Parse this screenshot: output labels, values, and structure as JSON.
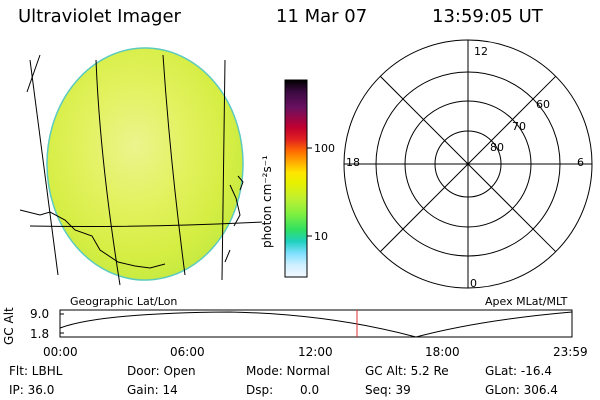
{
  "header": {
    "instrument": "Ultraviolet Imager",
    "date": "11 Mar 07",
    "time": "13:59:05 UT"
  },
  "colorbar": {
    "unit_label": "photon cm⁻²s⁻¹",
    "ticks": [
      "100",
      "10"
    ],
    "colors": [
      "#000000",
      "#3a0a40",
      "#6a1060",
      "#c00030",
      "#e02020",
      "#ff6a00",
      "#ffb000",
      "#ffe600",
      "#e8f000",
      "#c0f030",
      "#80f040",
      "#30e060",
      "#20d0c0",
      "#80e0ff",
      "#d0f0ff",
      "#ffffff"
    ]
  },
  "polar": {
    "mlt_labels": {
      "top": "12",
      "right": "6",
      "bottom": "0",
      "left": "18"
    },
    "lat_labels": [
      "60",
      "70",
      "80"
    ]
  },
  "panel_labels": {
    "left": "Geographic Lat/Lon",
    "right": "Apex MLat/MLT"
  },
  "altitude_plot": {
    "axis_label": "GC Alt",
    "y_ticks": [
      "9.0",
      "1.8"
    ],
    "x_ticks": [
      "00:00",
      "06:00",
      "12:00",
      "18:00",
      "23:59"
    ],
    "marker_color": "#e03030"
  },
  "status": {
    "filter": "Flt: LBHL",
    "ip": "IP: 36.0",
    "door": "Door: Open",
    "gain": "Gain: 14",
    "mode": "Mode: Normal",
    "dsp_label": "Dsp:",
    "dsp_value": "0.0",
    "gc_alt": "GC Alt: 5.2 Re",
    "seq": "Seq: 39",
    "glat": "GLat: -16.4",
    "glon": "GLon: 306.4"
  }
}
